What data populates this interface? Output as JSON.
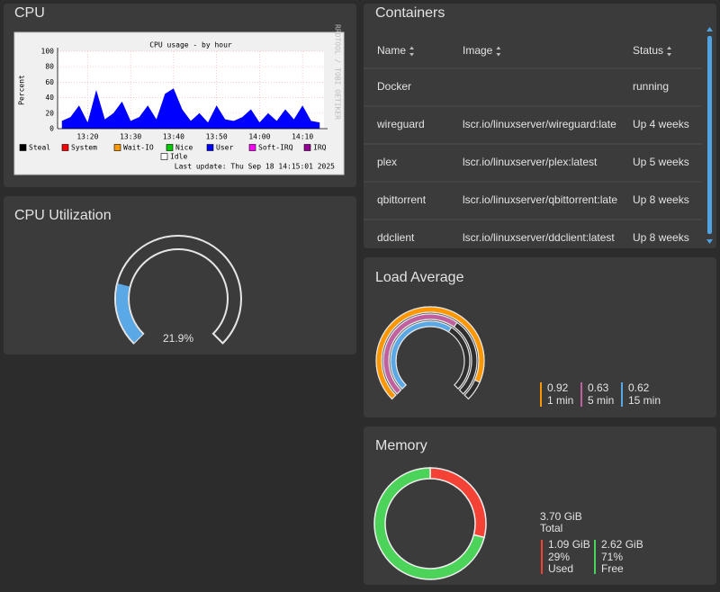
{
  "cpu": {
    "title": "CPU",
    "chart": {
      "type": "area",
      "title": "CPU usage - by hour",
      "y_label": "Percent",
      "x": [
        "13:14",
        "13:16",
        "13:18",
        "13:20",
        "13:22",
        "13:24",
        "13:26",
        "13:28",
        "13:30",
        "13:32",
        "13:34",
        "13:36",
        "13:38",
        "13:40",
        "13:42",
        "13:44",
        "13:46",
        "13:48",
        "13:50",
        "13:52",
        "13:54",
        "13:56",
        "13:58",
        "14:00",
        "14:02",
        "14:04",
        "14:06",
        "14:08",
        "14:10",
        "14:12",
        "14:14"
      ],
      "series": [
        {
          "name": "Steal",
          "color": "#000000"
        },
        {
          "name": "System",
          "color": "#ff0000"
        },
        {
          "name": "Wait-IO",
          "color": "#ff9900"
        },
        {
          "name": "Nice",
          "color": "#00cc00"
        },
        {
          "name": "User",
          "color": "#0000ff",
          "values": [
            10,
            15,
            30,
            8,
            50,
            12,
            20,
            35,
            10,
            15,
            30,
            12,
            45,
            52,
            25,
            10,
            20,
            8,
            30,
            12,
            10,
            15,
            25,
            8,
            20,
            10,
            25,
            12,
            30,
            10,
            8
          ]
        },
        {
          "name": "Soft-IRQ",
          "color": "#ff00ff"
        },
        {
          "name": "IRQ",
          "color": "#990099"
        },
        {
          "name": "Idle",
          "color": "#ffffff"
        }
      ],
      "xlim": [
        "13:13",
        "14:15"
      ],
      "xticks": [
        "13:20",
        "13:30",
        "13:40",
        "13:50",
        "14:00",
        "14:10"
      ],
      "ylim": [
        0,
        100
      ],
      "yticks": [
        0,
        20,
        40,
        60,
        80,
        100
      ],
      "grid": true,
      "last_update": "Last update: Thu Sep 18 14:15:01 2025",
      "side_label": "RRDTOOL / TOBI OETIKER"
    }
  },
  "cpu_utilization": {
    "title": "CPU Utilization",
    "value": 21.9,
    "value_label": "21.9%",
    "range": [
      0,
      100
    ],
    "color": "#5aa9e6"
  },
  "containers": {
    "title": "Containers",
    "columns": [
      "Name",
      "Image",
      "Status"
    ],
    "rows": [
      [
        "Docker",
        null,
        "running"
      ],
      [
        "wireguard",
        "lscr.io/linuxserver/wireguard:late",
        "Up 4 weeks"
      ],
      [
        "plex",
        "lscr.io/linuxserver/plex:latest",
        "Up 5 weeks"
      ],
      [
        "qbittorrent",
        "lscr.io/linuxserver/qbittorrent:late",
        "Up 8 weeks"
      ],
      [
        "ddclient",
        "lscr.io/linuxserver/ddclient:latest",
        "Up 8 weeks"
      ]
    ]
  },
  "load_average": {
    "title": "Load Average",
    "range": [
      0,
      1
    ],
    "series": [
      {
        "name": "1 min",
        "value": 0.92,
        "color": "#ff9800"
      },
      {
        "name": "5 min",
        "value": 0.63,
        "color": "#c0609e"
      },
      {
        "name": "15 min",
        "value": 0.62,
        "color": "#5aa9e6"
      }
    ]
  },
  "memory": {
    "title": "Memory",
    "total": {
      "amount": "3.70 GiB",
      "label": "Total"
    },
    "series": [
      {
        "name": "Used",
        "amount": "1.09 GiB",
        "percent": 29,
        "percent_label": "29%",
        "color": "#f44336"
      },
      {
        "name": "Free",
        "amount": "2.62 GiB",
        "percent": 71,
        "percent_label": "71%",
        "color": "#4cd35a"
      }
    ]
  }
}
